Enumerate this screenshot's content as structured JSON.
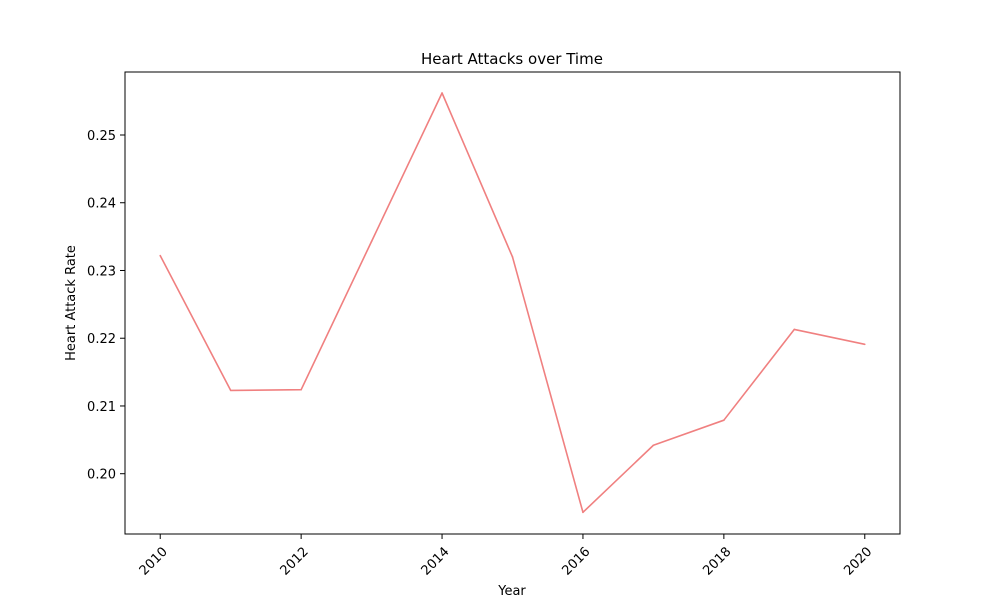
{
  "chart_data": {
    "type": "line",
    "title": "Heart Attacks over Time",
    "xlabel": "Year",
    "ylabel": "Heart Attack Rate",
    "x": [
      2010,
      2011,
      2012,
      2013,
      2014,
      2015,
      2016,
      2017,
      2018,
      2019,
      2020
    ],
    "series": [
      {
        "values": [
          0.2322,
          0.2123,
          0.2124,
          0.2343,
          0.2562,
          0.232,
          0.1943,
          0.2042,
          0.2079,
          0.2213,
          0.2191
        ],
        "color": "#f08080"
      }
    ],
    "xticks": [
      2010,
      2012,
      2014,
      2016,
      2018,
      2020
    ],
    "yticks": [
      "0.20",
      "0.21",
      "0.22",
      "0.23",
      "0.24",
      "0.25"
    ],
    "xlim": [
      2009.5,
      2020.5
    ],
    "ylim": [
      0.1911,
      0.2593
    ],
    "grid": false,
    "legend": false
  }
}
